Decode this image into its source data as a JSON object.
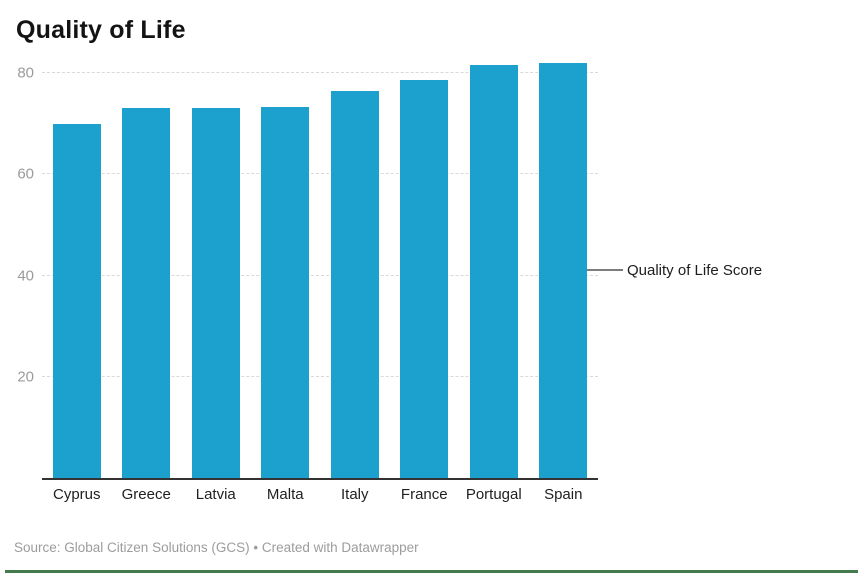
{
  "header": {
    "title": "Quality of Life"
  },
  "chart_data": {
    "type": "bar",
    "title": "Quality of Life",
    "categories": [
      "Cyprus",
      "Greece",
      "Latvia",
      "Malta",
      "Italy",
      "France",
      "Portugal",
      "Spain"
    ],
    "values": [
      70,
      73,
      73,
      73.3,
      76.5,
      78.5,
      81.5,
      82
    ],
    "xlabel": "",
    "ylabel": "",
    "yticks": [
      20,
      40,
      60,
      80
    ],
    "ylim": [
      0,
      83.5
    ],
    "grid": true,
    "legend_position": "right-annotation",
    "bar_color": "#1CA0CE",
    "annotation": {
      "text": "Quality of Life Score",
      "points_to": "Spain"
    }
  },
  "footer": {
    "source": "Source: Global Citizen Solutions (GCS) • Created with Datawrapper"
  },
  "colors": {
    "bar": "#1CA0CE",
    "accent_bar": "#447A4E",
    "grid": "#D9D9D9",
    "axis": "#333333",
    "tick_label": "#9B9B9B",
    "category_label": "#1F1F1F",
    "title_text": "#131313",
    "connector": "#7D7D7D",
    "source_text": "#9C9C9C"
  }
}
